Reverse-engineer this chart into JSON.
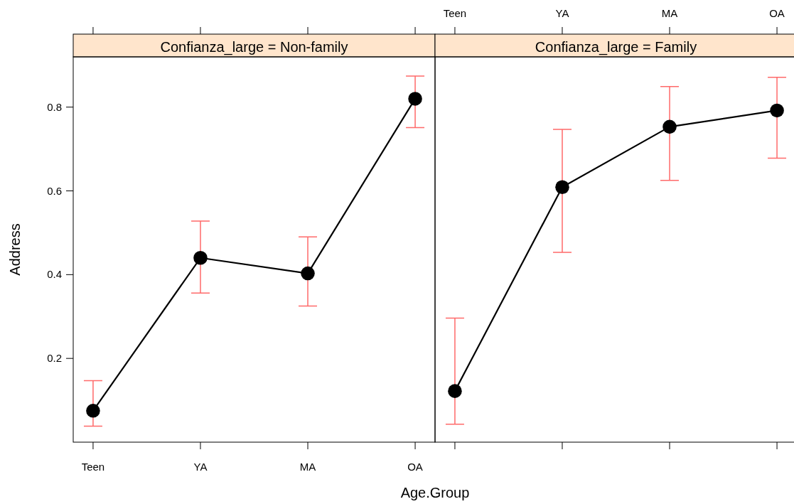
{
  "chart_data": [
    {
      "type": "line",
      "title": "Confianza_large = Non-family",
      "xlabel": "Age.Group",
      "ylabel": "Address",
      "categories": [
        "Teen",
        "YA",
        "MA",
        "OA"
      ],
      "marker": "circle",
      "ylim": [
        0,
        0.92
      ],
      "yticks": [
        0.2,
        0.4,
        0.6,
        0.8
      ],
      "tick_labels": "xy",
      "series": [
        {
          "color": "#000000",
          "values": [
            0.075,
            0.44,
            0.403,
            0.82
          ],
          "errors": [
            [
              0.038,
              0.147
            ],
            [
              0.356,
              0.528
            ],
            [
              0.325,
              0.49
            ],
            [
              0.751,
              0.874
            ]
          ]
        }
      ]
    },
    {
      "type": "line",
      "title": "Confianza_large = Family",
      "categories": [
        "Teen",
        "YA",
        "MA",
        "OA"
      ],
      "marker": "circle",
      "ylim": [
        0,
        0.92
      ],
      "tick_labels": "x",
      "series": [
        {
          "color": "#000000",
          "values": [
            0.122,
            0.609,
            0.753,
            0.792
          ],
          "errors": [
            [
              0.043,
              0.296
            ],
            [
              0.453,
              0.747
            ],
            [
              0.625,
              0.849
            ],
            [
              0.678,
              0.871
            ]
          ]
        }
      ]
    }
  ]
}
